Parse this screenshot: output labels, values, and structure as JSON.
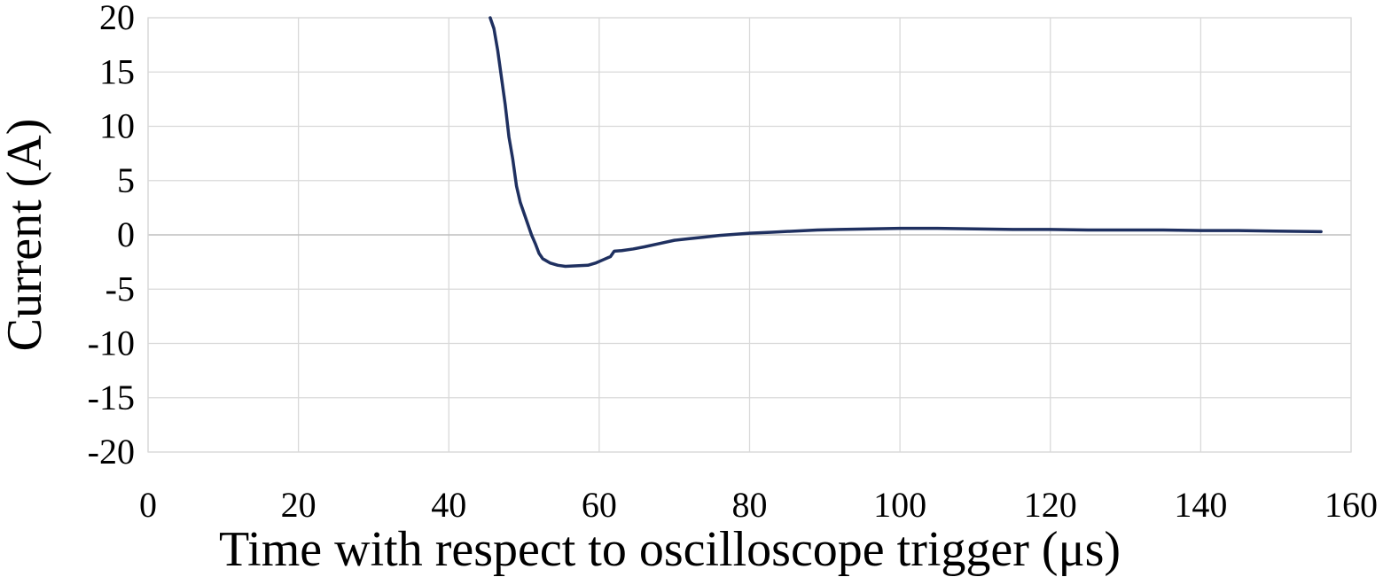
{
  "chart_data": {
    "type": "line",
    "title": "",
    "xlabel": "Time with respect to oscilloscope trigger (μs)",
    "ylabel": "Current (A)",
    "xlim": [
      0,
      160
    ],
    "ylim": [
      -20,
      20
    ],
    "xticks": [
      0,
      20,
      40,
      60,
      80,
      100,
      120,
      140,
      160
    ],
    "yticks": [
      20,
      15,
      10,
      5,
      0,
      -5,
      -10,
      -15,
      -20
    ],
    "grid": true,
    "legend": "none",
    "series": [
      {
        "color": "#1f3060",
        "points": [
          [
            45.5,
            20.0
          ],
          [
            46.0,
            19.0
          ],
          [
            46.5,
            17.0
          ],
          [
            47.0,
            14.5
          ],
          [
            47.5,
            12.0
          ],
          [
            48.0,
            9.0
          ],
          [
            48.5,
            7.0
          ],
          [
            49.0,
            4.5
          ],
          [
            49.5,
            3.0
          ],
          [
            50.0,
            2.0
          ],
          [
            50.5,
            1.0
          ],
          [
            51.0,
            0.0
          ],
          [
            51.5,
            -0.8
          ],
          [
            52.0,
            -1.7
          ],
          [
            52.5,
            -2.2
          ],
          [
            53.5,
            -2.6
          ],
          [
            54.5,
            -2.8
          ],
          [
            55.5,
            -2.9
          ],
          [
            57.0,
            -2.85
          ],
          [
            58.5,
            -2.8
          ],
          [
            59.5,
            -2.6
          ],
          [
            60.5,
            -2.3
          ],
          [
            61.5,
            -2.0
          ],
          [
            62.0,
            -1.5
          ],
          [
            63.0,
            -1.45
          ],
          [
            64.5,
            -1.3
          ],
          [
            66.0,
            -1.1
          ],
          [
            68.0,
            -0.8
          ],
          [
            70.0,
            -0.5
          ],
          [
            72.0,
            -0.35
          ],
          [
            74.0,
            -0.2
          ],
          [
            76.0,
            -0.05
          ],
          [
            78.0,
            0.05
          ],
          [
            80.0,
            0.15
          ],
          [
            83.0,
            0.25
          ],
          [
            86.0,
            0.35
          ],
          [
            89.0,
            0.45
          ],
          [
            92.0,
            0.5
          ],
          [
            96.0,
            0.55
          ],
          [
            100.0,
            0.6
          ],
          [
            105.0,
            0.6
          ],
          [
            110.0,
            0.55
          ],
          [
            115.0,
            0.5
          ],
          [
            120.0,
            0.5
          ],
          [
            125.0,
            0.45
          ],
          [
            130.0,
            0.45
          ],
          [
            135.0,
            0.45
          ],
          [
            140.0,
            0.4
          ],
          [
            145.0,
            0.4
          ],
          [
            150.0,
            0.35
          ],
          [
            156.0,
            0.3
          ]
        ]
      }
    ]
  }
}
